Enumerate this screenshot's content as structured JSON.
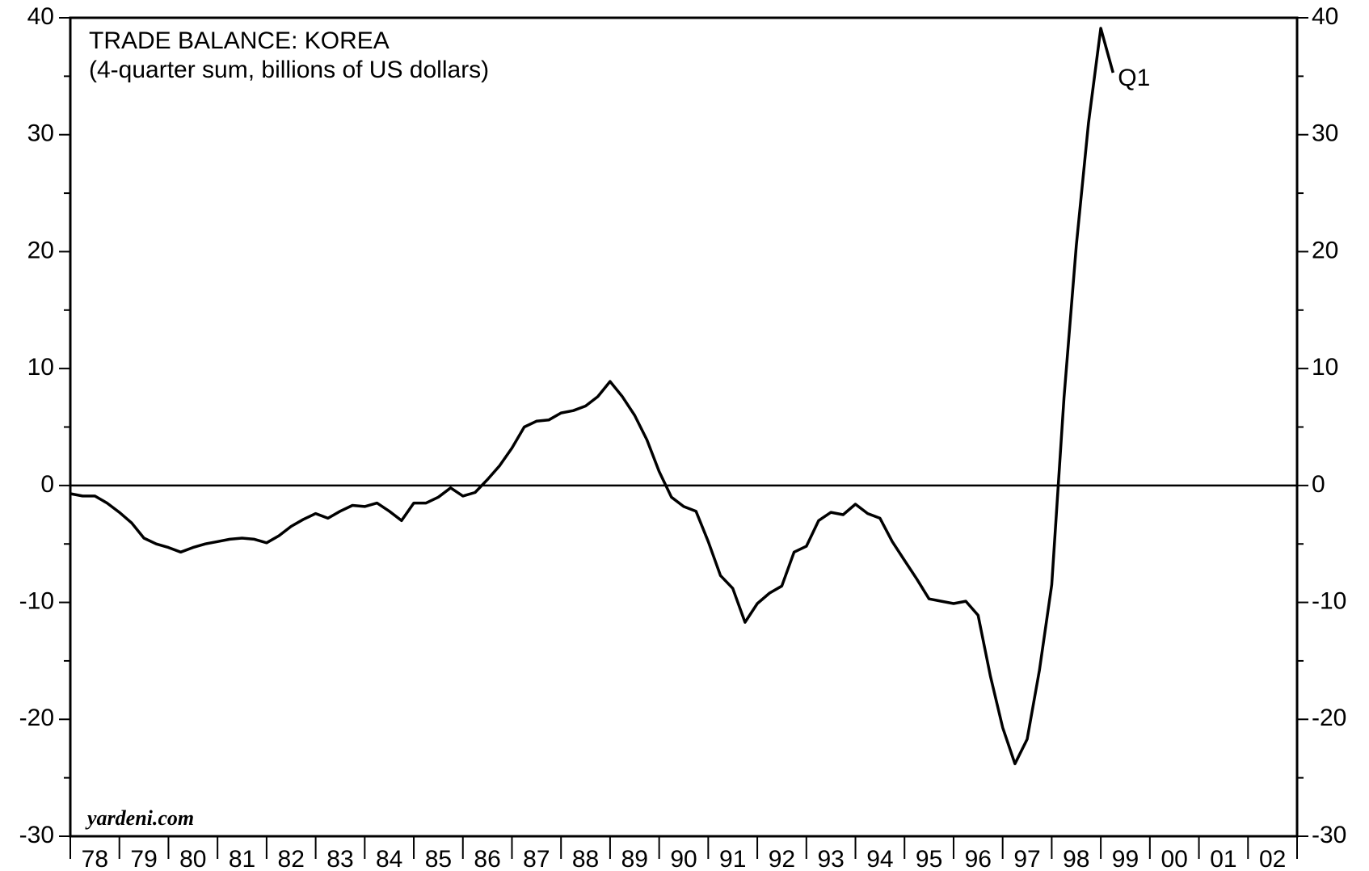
{
  "chart_data": {
    "type": "line",
    "title": "TRADE BALANCE: KOREA",
    "subtitle": "(4-quarter sum, billions of US dollars)",
    "annotation": "Q1",
    "source": "yardeni.com",
    "series": [
      {
        "color": "#000000",
        "x": [
          78,
          78.25,
          78.5,
          78.75,
          79,
          79.25,
          79.5,
          79.75,
          80,
          80.25,
          80.5,
          80.75,
          81,
          81.25,
          81.5,
          81.75,
          82,
          82.25,
          82.5,
          82.75,
          83,
          83.25,
          83.5,
          83.75,
          84,
          84.25,
          84.5,
          84.75,
          85,
          85.25,
          85.5,
          85.75,
          86,
          86.25,
          86.5,
          86.75,
          87,
          87.25,
          87.5,
          87.75,
          88,
          88.25,
          88.5,
          88.75,
          89,
          89.25,
          89.5,
          89.75,
          90,
          90.25,
          90.5,
          90.75,
          91,
          91.25,
          91.5,
          91.75,
          92,
          92.25,
          92.5,
          92.75,
          93,
          93.25,
          93.5,
          93.75,
          94,
          94.25,
          94.5,
          94.75,
          95,
          95.25,
          95.5,
          95.75,
          96,
          96.25,
          96.5,
          96.75,
          97,
          97.25,
          97.5,
          97.75,
          98,
          98.25,
          98.5,
          98.75,
          99,
          99.25
        ],
        "values": [
          -0.7,
          -0.9,
          -0.9,
          -1.5,
          -2.3,
          -3.2,
          -4.5,
          -5.0,
          -5.3,
          -5.7,
          -5.3,
          -5.0,
          -4.8,
          -4.6,
          -4.5,
          -4.6,
          -4.9,
          -4.3,
          -3.5,
          -2.9,
          -2.4,
          -2.8,
          -2.2,
          -1.7,
          -1.8,
          -1.5,
          -2.2,
          -3.0,
          -1.5,
          -1.5,
          -1.0,
          -0.2,
          -0.9,
          -0.6,
          0.5,
          1.7,
          3.2,
          5.0,
          5.5,
          5.6,
          6.2,
          6.4,
          6.8,
          7.6,
          8.9,
          7.6,
          6.0,
          3.9,
          1.2,
          -1.0,
          -1.8,
          -2.2,
          -4.8,
          -7.7,
          -8.8,
          -11.7,
          -10.1,
          -9.2,
          -8.6,
          -5.7,
          -5.2,
          -3.0,
          -2.3,
          -2.5,
          -1.6,
          -2.4,
          -2.8,
          -4.8,
          -6.4,
          -8.0,
          -9.7,
          -9.9,
          -10.1,
          -9.9,
          -11.1,
          -16.3,
          -20.7,
          -23.8,
          -21.7,
          -15.8,
          -8.5,
          7.5,
          20.5,
          31.0,
          39.1,
          35.3
        ]
      }
    ],
    "xlim": [
      78,
      103
    ],
    "xticks": [
      78,
      79,
      80,
      81,
      82,
      83,
      84,
      85,
      86,
      87,
      88,
      89,
      90,
      91,
      92,
      93,
      94,
      95,
      96,
      97,
      98,
      99,
      100,
      101,
      102,
      103
    ],
    "xlabels": [
      {
        "value": 78.5,
        "label": "78"
      },
      {
        "value": 79.5,
        "label": "79"
      },
      {
        "value": 80.5,
        "label": "80"
      },
      {
        "value": 81.5,
        "label": "81"
      },
      {
        "value": 82.5,
        "label": "82"
      },
      {
        "value": 83.5,
        "label": "83"
      },
      {
        "value": 84.5,
        "label": "84"
      },
      {
        "value": 85.5,
        "label": "85"
      },
      {
        "value": 86.5,
        "label": "86"
      },
      {
        "value": 87.5,
        "label": "87"
      },
      {
        "value": 88.5,
        "label": "88"
      },
      {
        "value": 89.5,
        "label": "89"
      },
      {
        "value": 90.5,
        "label": "90"
      },
      {
        "value": 91.5,
        "label": "91"
      },
      {
        "value": 92.5,
        "label": "92"
      },
      {
        "value": 93.5,
        "label": "93"
      },
      {
        "value": 94.5,
        "label": "94"
      },
      {
        "value": 95.5,
        "label": "95"
      },
      {
        "value": 96.5,
        "label": "96"
      },
      {
        "value": 97.5,
        "label": "97"
      },
      {
        "value": 98.5,
        "label": "98"
      },
      {
        "value": 99.5,
        "label": "99"
      },
      {
        "value": 100.5,
        "label": "00"
      },
      {
        "value": 101.5,
        "label": "01"
      },
      {
        "value": 102.5,
        "label": "02"
      }
    ],
    "ylim": [
      -30,
      40
    ],
    "yticks": [
      -30,
      -20,
      -10,
      0,
      10,
      20,
      30,
      40
    ],
    "yminor_ticks": [
      -25,
      -15,
      -5,
      5,
      15,
      25,
      35
    ],
    "zero_line": true
  }
}
